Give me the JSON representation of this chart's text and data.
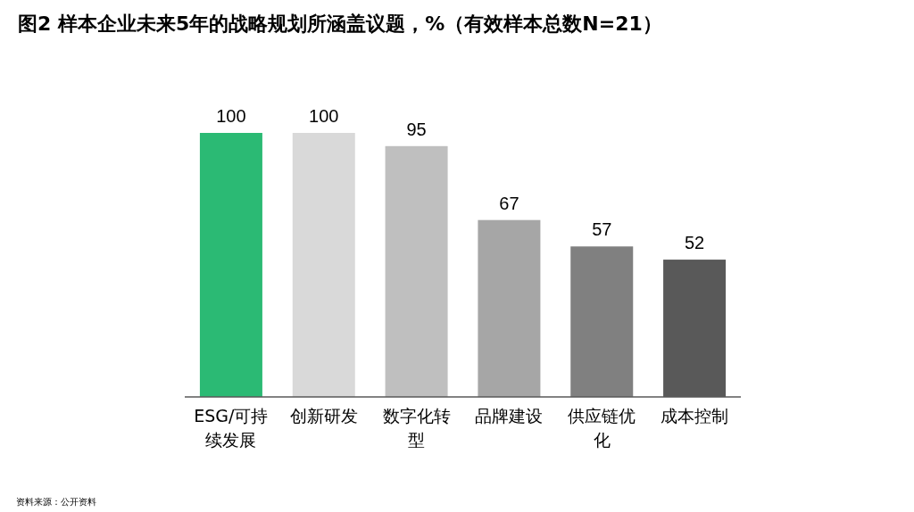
{
  "chart_data": {
    "type": "bar",
    "title": "图2  样本企业未来5年的战略规划所涵盖议题，%（有效样本总数N=21）",
    "categories": [
      "ESG/可持续发展",
      "创新研发",
      "数字化转型",
      "品牌建设",
      "供应链优化",
      "成本控制"
    ],
    "values": [
      100,
      100,
      95,
      67,
      57,
      52
    ],
    "colors": [
      "#2bba74",
      "#d9d9d9",
      "#bfbfbf",
      "#a6a6a6",
      "#808080",
      "#595959"
    ],
    "data_labels": true,
    "annotations": [
      "资料来源：公开资料"
    ]
  }
}
